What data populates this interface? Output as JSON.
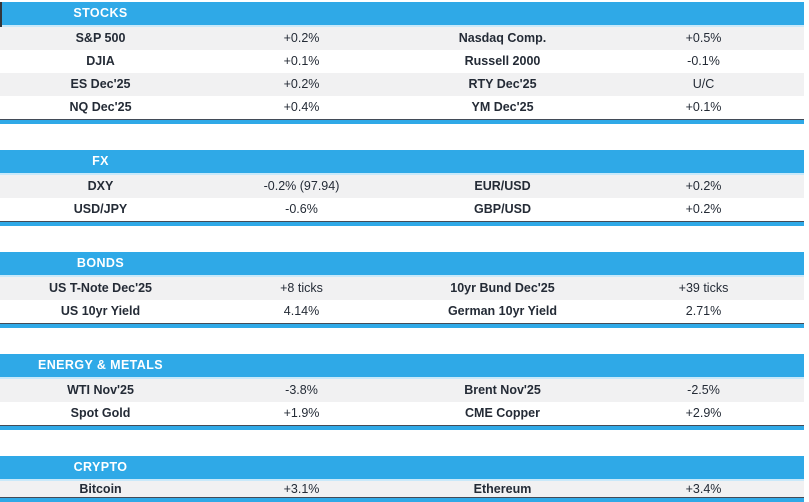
{
  "colors": {
    "header_blue": "#2FA9E7",
    "header_light_edge": "#C9E9FA",
    "underline_blue": "#2FA9E7",
    "row_alt_gray": "#F1F1F2",
    "text_dark": "#242B36",
    "header_text": "#FFFFFF"
  },
  "sections": [
    {
      "title": "STOCKS",
      "rows": [
        [
          "S&P 500",
          "+0.2%",
          "Nasdaq Comp.",
          "+0.5%"
        ],
        [
          "DJIA",
          "+0.1%",
          "Russell 2000",
          "-0.1%"
        ],
        [
          "ES Dec'25",
          "+0.2%",
          "RTY Dec'25",
          "U/C"
        ],
        [
          "NQ Dec'25",
          "+0.4%",
          "YM Dec'25",
          "+0.1%"
        ]
      ]
    },
    {
      "title": "FX",
      "rows": [
        [
          "DXY",
          "-0.2% (97.94)",
          "EUR/USD",
          "+0.2%"
        ],
        [
          "USD/JPY",
          "-0.6%",
          "GBP/USD",
          "+0.2%"
        ]
      ]
    },
    {
      "title": "BONDS",
      "rows": [
        [
          "US T-Note Dec'25",
          "+8 ticks",
          "10yr Bund Dec'25",
          "+39 ticks"
        ],
        [
          "US 10yr Yield",
          "4.14%",
          "German 10yr Yield",
          "2.71%"
        ]
      ]
    },
    {
      "title": "ENERGY & METALS",
      "rows": [
        [
          "WTI Nov'25",
          "-3.8%",
          "Brent Nov'25",
          "-2.5%"
        ],
        [
          "Spot Gold",
          "+1.9%",
          "CME Copper",
          "+2.9%"
        ]
      ]
    },
    {
      "title": "CRYPTO",
      "rows": [
        [
          "Bitcoin",
          "+3.1%",
          "Ethereum",
          "+3.4%"
        ]
      ]
    }
  ]
}
